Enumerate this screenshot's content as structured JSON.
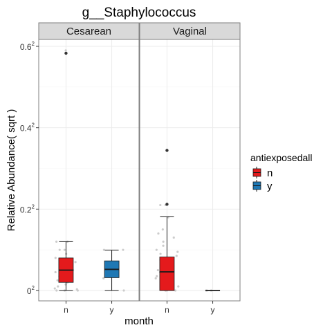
{
  "chart_data": {
    "type": "boxplot",
    "title": "g__Staphylococcus",
    "xlabel": "month",
    "ylabel": "Relative Abundance( sqrt )",
    "y_scale": "sqrt",
    "ylim": [
      0,
      0.38
    ],
    "y_ticks": [
      0,
      0.04,
      0.16,
      0.36
    ],
    "y_tick_labels": [
      {
        "base": "0",
        "exp": "2"
      },
      {
        "base": "0.2",
        "exp": "2"
      },
      {
        "base": "0.4",
        "exp": "2"
      },
      {
        "base": "0.6",
        "exp": "2"
      }
    ],
    "categories": [
      "n",
      "y"
    ],
    "panels": [
      {
        "name": "Cesarean",
        "boxes": [
          {
            "category": "n",
            "group": "n",
            "whisker_low": 0.0,
            "q1": 0.0004,
            "median": 0.0025,
            "q3": 0.0064,
            "whisker_high": 0.0144,
            "outliers": [
              0.34
            ],
            "points_sqrt": [
              0.59,
              0.12,
              0.12,
              0.1,
              0.1,
              0.09,
              0.08,
              0.07,
              0.065,
              0.06,
              0.06,
              0.05,
              0.05,
              0.045,
              0.04,
              0.035,
              0.03,
              0.025,
              0.02,
              0.015,
              0.01,
              0.005,
              0.003,
              0.0,
              0.0,
              0.0
            ]
          },
          {
            "category": "y",
            "group": "y",
            "whisker_low": 0.0,
            "q1": 0.001,
            "median": 0.0027,
            "q3": 0.0053,
            "whisker_high": 0.0098,
            "outliers": [],
            "points_sqrt": [
              0.1,
              0.1,
              0.07,
              0.065,
              0.05,
              0.04,
              0.03,
              0.0
            ]
          }
        ]
      },
      {
        "name": "Vaginal",
        "boxes": [
          {
            "category": "n",
            "group": "n",
            "whisker_low": 0.0,
            "q1": 0.0,
            "median": 0.0021,
            "q3": 0.0068,
            "whisker_high": 0.0328,
            "outliers": [
              0.1186,
              0.0449
            ],
            "points_sqrt": [
              0.21,
              0.21,
              0.18,
              0.15,
              0.14,
              0.13,
              0.12,
              0.11,
              0.1,
              0.095,
              0.09,
              0.085,
              0.08,
              0.075,
              0.07,
              0.065,
              0.06,
              0.055,
              0.05,
              0.045,
              0.04,
              0.035,
              0.03,
              0.025,
              0.02,
              0.015,
              0.01,
              0.005,
              0.0,
              0.0,
              0.0,
              0.0,
              0.0
            ]
          },
          {
            "category": "y",
            "group": "y",
            "whisker_low": 0.0,
            "q1": 0.0,
            "median": 0.0,
            "q3": 0.0,
            "whisker_high": 0.0,
            "outliers": [],
            "points_sqrt": [
              0.0,
              0.0,
              0.0
            ]
          }
        ]
      }
    ],
    "legend": {
      "title": "antiexposedall",
      "position": "right",
      "items": [
        {
          "label": "n",
          "color": "#e41a1c"
        },
        {
          "label": "y",
          "color": "#1f78b4"
        }
      ]
    },
    "grid": true,
    "colors": {
      "strip_bg": "#d9d9d9",
      "panel_border": "#7f7f7f",
      "grid_major": "#ebebeb",
      "grid_minor": "#f5f5f5",
      "point": "#333333",
      "jitter": "#cccccc"
    }
  }
}
